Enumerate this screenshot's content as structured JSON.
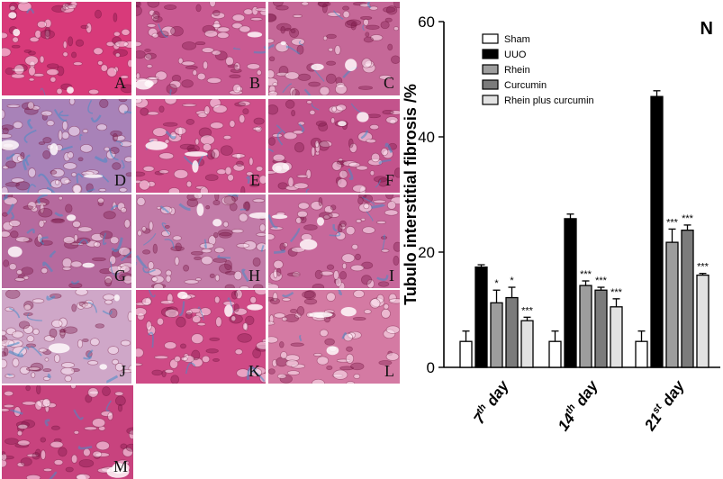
{
  "panels": {
    "labels": [
      "A",
      "B",
      "C",
      "D",
      "E",
      "F",
      "G",
      "H",
      "I",
      "J",
      "K",
      "L",
      "M"
    ]
  },
  "chart_data": {
    "type": "bar",
    "panel_label": "N",
    "ylabel": "Tubulo interstitial fibrosis /%",
    "ylim": [
      0,
      60
    ],
    "yticks": [
      "0",
      "20",
      "40",
      "60"
    ],
    "groups": [
      {
        "base": "7",
        "sup": "th",
        "word": " day"
      },
      {
        "base": "14",
        "sup": "th",
        "word": " day"
      },
      {
        "base": "21",
        "sup": "st",
        "word": " day"
      }
    ],
    "legend_position": "top-left",
    "series": [
      {
        "name": "Sham",
        "color": "#ffffff",
        "values": [
          4.5,
          4.5,
          4.5
        ],
        "errors": [
          1.8,
          1.8,
          1.8
        ],
        "sig": [
          "",
          "",
          ""
        ]
      },
      {
        "name": "UUO",
        "color": "#000000",
        "values": [
          17.4,
          25.8,
          47.0
        ],
        "errors": [
          0.4,
          0.8,
          1.0
        ],
        "sig": [
          "",
          "",
          ""
        ]
      },
      {
        "name": "Rhein",
        "color": "#9d9d9d",
        "values": [
          11.2,
          14.2,
          21.7
        ],
        "errors": [
          2.2,
          0.8,
          2.3
        ],
        "sig": [
          "*",
          "***",
          "***"
        ]
      },
      {
        "name": "Curcumin",
        "color": "#7b7b7b",
        "values": [
          12.1,
          13.4,
          23.8
        ],
        "errors": [
          1.8,
          0.5,
          0.9
        ],
        "sig": [
          "*",
          "***",
          "***"
        ]
      },
      {
        "name": "Rhein plus curcumin",
        "color": "#e2e2e2",
        "values": [
          8.1,
          10.5,
          16.0
        ],
        "errors": [
          0.6,
          1.4,
          0.3
        ],
        "sig": [
          "***",
          "***",
          "***"
        ]
      }
    ]
  }
}
